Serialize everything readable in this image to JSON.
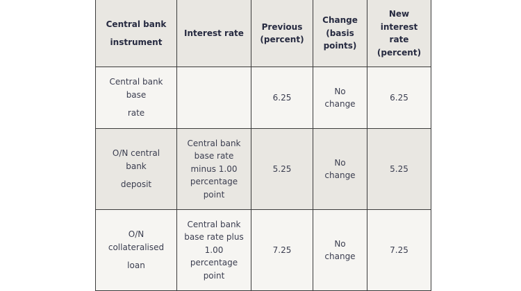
{
  "headers": [
    {
      "lines": [
        "Central bank",
        "instrument"
      ]
    },
    {
      "lines": [
        "Interest rate"
      ]
    },
    {
      "lines": [
        "Previous",
        "(percent)"
      ]
    },
    {
      "lines": [
        "Change",
        "(basis",
        "points)"
      ]
    },
    {
      "lines": [
        "New",
        "interest",
        "rate",
        "(percent)"
      ]
    }
  ],
  "rows": [
    {
      "instrument": [
        "Central bank",
        "base",
        "rate"
      ],
      "interest_rate": [],
      "previous": "6.25",
      "change": [
        "No",
        "change"
      ],
      "new_rate": "6.25"
    },
    {
      "instrument": [
        "O/N central",
        "bank",
        "deposit"
      ],
      "interest_rate": [
        "Central bank",
        "base rate",
        "minus 1.00",
        "percentage",
        "point"
      ],
      "previous": "5.25",
      "change": [
        "No",
        "change"
      ],
      "new_rate": "5.25"
    },
    {
      "instrument": [
        "O/N",
        "collateralised",
        "loan"
      ],
      "interest_rate": [
        "Central bank",
        "base rate plus",
        "1.00",
        "percentage",
        "point"
      ],
      "previous": "7.25",
      "change": [
        "No",
        "change"
      ],
      "new_rate": "7.25"
    }
  ]
}
